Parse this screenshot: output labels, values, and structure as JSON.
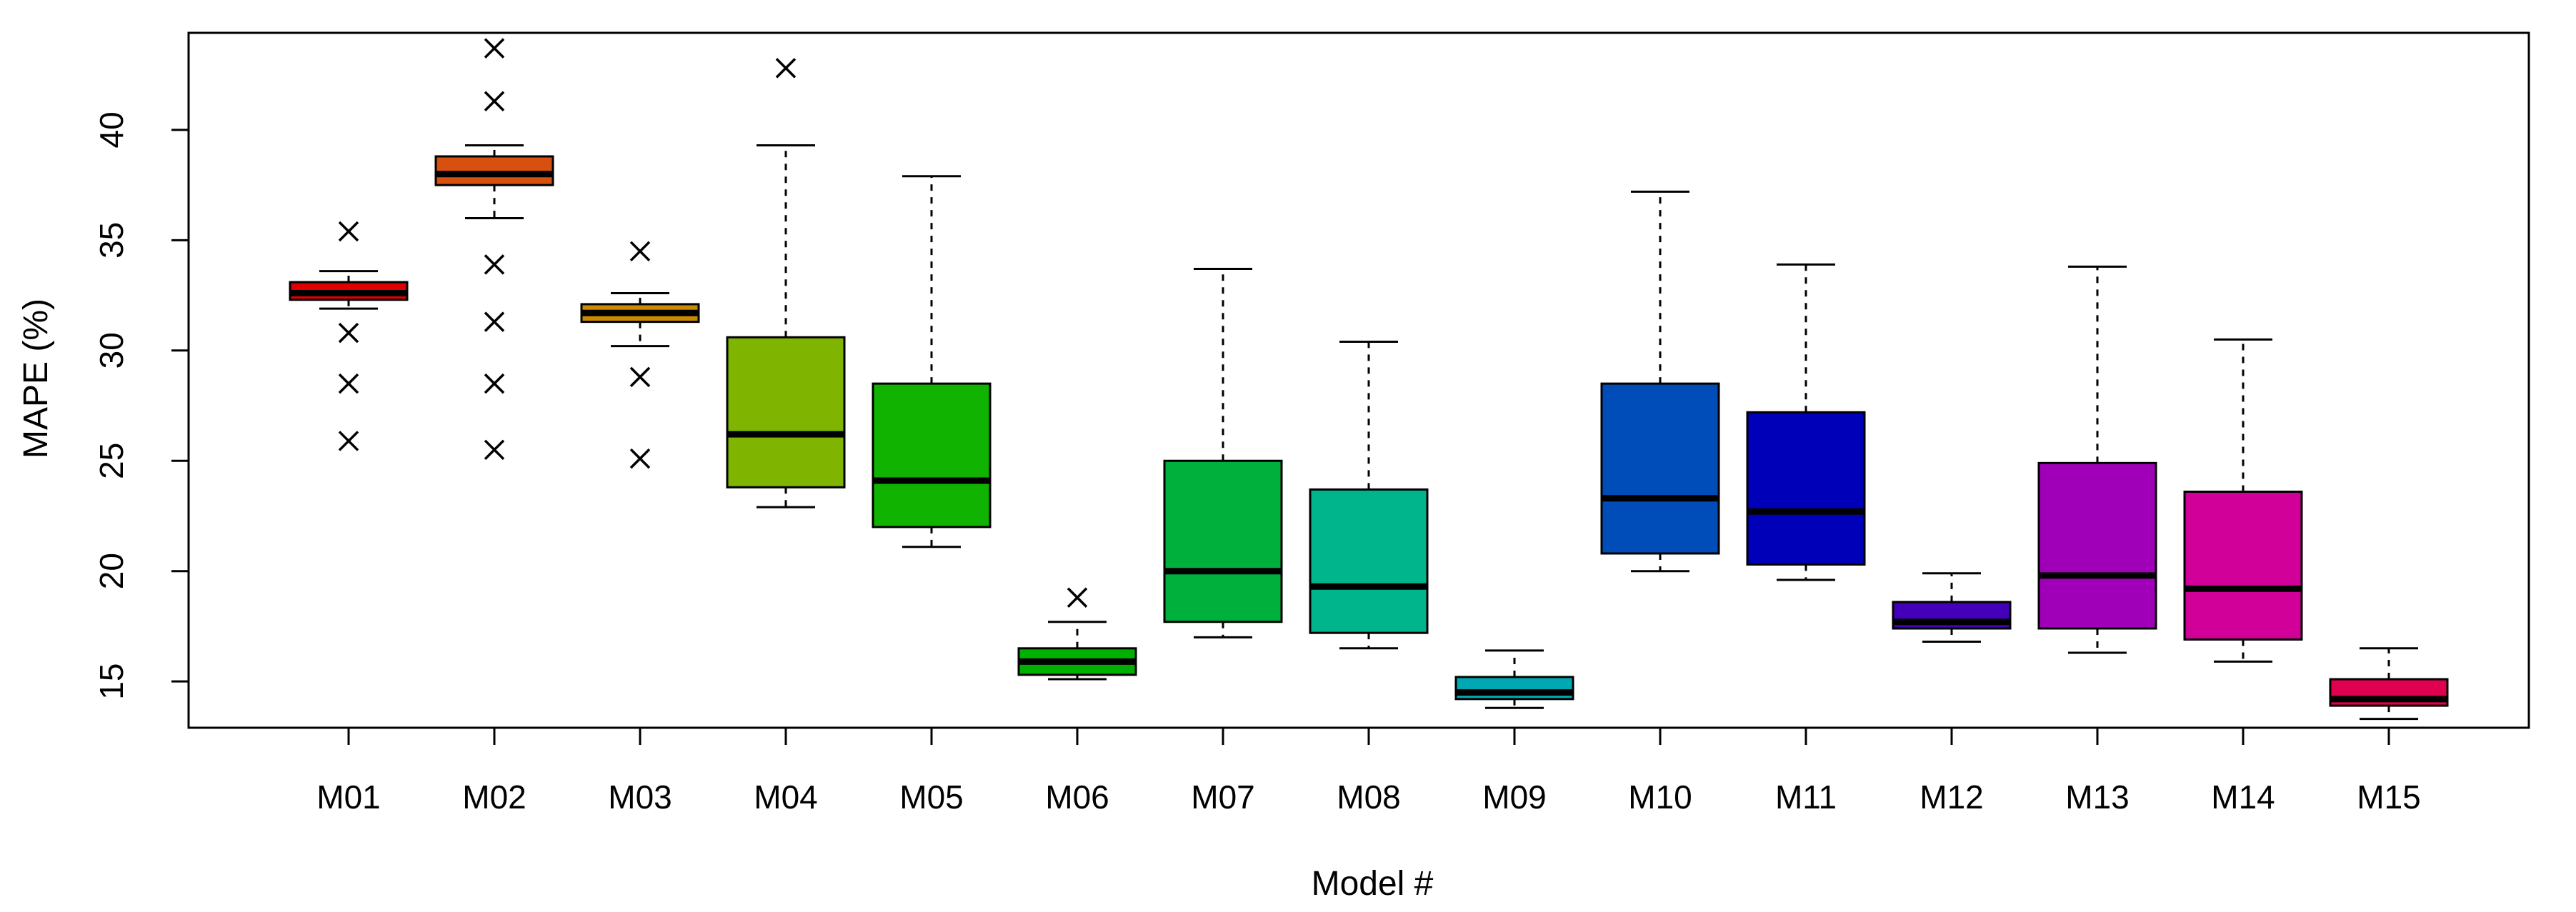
{
  "chart_data": {
    "type": "boxplot",
    "title": "",
    "xlabel": "Model #",
    "ylabel": "MAPE (%)",
    "ylim": [
      12.9,
      44.4
    ],
    "yticks": [
      15,
      20,
      25,
      30,
      35,
      40
    ],
    "grid": false,
    "categories": [
      "M01",
      "M02",
      "M03",
      "M04",
      "M05",
      "M06",
      "M07",
      "M08",
      "M09",
      "M10",
      "M11",
      "M12",
      "M13",
      "M14",
      "M15"
    ],
    "boxes": [
      {
        "name": "M01",
        "color": "#E00000",
        "whisker_low": 31.9,
        "q1": 32.3,
        "median": 32.6,
        "q3": 33.1,
        "whisker_high": 33.6,
        "outliers": [
          35.4,
          30.8,
          28.5,
          25.9
        ]
      },
      {
        "name": "M02",
        "color": "#D85010",
        "whisker_low": 36.0,
        "q1": 37.5,
        "median": 38.0,
        "q3": 38.8,
        "whisker_high": 39.3,
        "outliers": [
          43.7,
          41.3,
          33.9,
          31.3,
          28.5,
          25.5
        ]
      },
      {
        "name": "M03",
        "color": "#C88A00",
        "whisker_low": 30.2,
        "q1": 31.3,
        "median": 31.7,
        "q3": 32.1,
        "whisker_high": 32.6,
        "outliers": [
          34.5,
          28.8,
          25.1
        ]
      },
      {
        "name": "M04",
        "color": "#7FB400",
        "whisker_low": 22.9,
        "q1": 23.8,
        "median": 26.2,
        "q3": 30.6,
        "whisker_high": 39.3,
        "outliers": [
          42.8
        ]
      },
      {
        "name": "M05",
        "color": "#10B400",
        "whisker_low": 21.1,
        "q1": 22.0,
        "median": 24.1,
        "q3": 28.5,
        "whisker_high": 37.9,
        "outliers": []
      },
      {
        "name": "M06",
        "color": "#00B000",
        "whisker_low": 15.1,
        "q1": 15.3,
        "median": 15.9,
        "q3": 16.5,
        "whisker_high": 17.7,
        "outliers": [
          18.8
        ]
      },
      {
        "name": "M07",
        "color": "#00B03C",
        "whisker_low": 17.0,
        "q1": 17.7,
        "median": 20.0,
        "q3": 25.0,
        "whisker_high": 33.7,
        "outliers": []
      },
      {
        "name": "M08",
        "color": "#00B48C",
        "whisker_low": 16.5,
        "q1": 17.2,
        "median": 19.3,
        "q3": 23.7,
        "whisker_high": 30.4,
        "outliers": []
      },
      {
        "name": "M09",
        "color": "#00A8B4",
        "whisker_low": 13.8,
        "q1": 14.2,
        "median": 14.5,
        "q3": 15.2,
        "whisker_high": 16.4,
        "outliers": []
      },
      {
        "name": "M10",
        "color": "#004CB8",
        "whisker_low": 20.0,
        "q1": 20.8,
        "median": 23.3,
        "q3": 28.5,
        "whisker_high": 37.2,
        "outliers": []
      },
      {
        "name": "M11",
        "color": "#0000B8",
        "whisker_low": 19.6,
        "q1": 20.3,
        "median": 22.7,
        "q3": 27.2,
        "whisker_high": 33.9,
        "outliers": []
      },
      {
        "name": "M12",
        "color": "#4400B8",
        "whisker_low": 16.8,
        "q1": 17.4,
        "median": 17.7,
        "q3": 18.6,
        "whisker_high": 19.9,
        "outliers": []
      },
      {
        "name": "M13",
        "color": "#A000B8",
        "whisker_low": 16.3,
        "q1": 17.4,
        "median": 19.8,
        "q3": 24.9,
        "whisker_high": 33.8,
        "outliers": []
      },
      {
        "name": "M14",
        "color": "#D00098",
        "whisker_low": 15.9,
        "q1": 16.9,
        "median": 19.2,
        "q3": 23.6,
        "whisker_high": 30.5,
        "outliers": []
      },
      {
        "name": "M15",
        "color": "#E00050",
        "whisker_low": 13.3,
        "q1": 13.9,
        "median": 14.2,
        "q3": 15.1,
        "whisker_high": 16.5,
        "outliers": []
      }
    ]
  }
}
